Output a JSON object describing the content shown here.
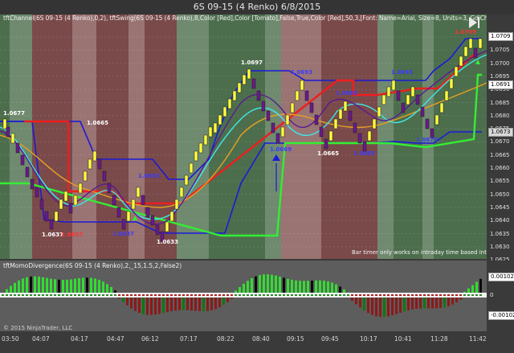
{
  "window": {
    "title": "6S 09-15 (4 Renko)  6/8/2015"
  },
  "chart": {
    "indicator_line": "tftChannel(6S 09-15 (4 Renko),0,2), tftSwing(6S 09-15 (4 Renko),8,Color [Red],Color [Tomato],False,True,Color [Red],50,3,[Font: Name=Arial, Size=8, Units=3, GdiCharSet=1, GdiVerticalFont=",
    "price_ticks": [
      "1.0709",
      "1.0705",
      "1.0700",
      "1.0695",
      "1.0690",
      "1.0685",
      "1.0680",
      "1.0675",
      "1.0670",
      "1.0665",
      "1.0660",
      "1.0655",
      "1.0650",
      "1.0645",
      "1.0640",
      "1.0635",
      "1.0630",
      "1.0625"
    ],
    "current_price_badge": "1.0709",
    "badge_2": "1.0691",
    "badge_3": "1.0673",
    "swing_labels": [
      {
        "text": "1.0677",
        "color": "#ffffff"
      },
      {
        "text": "1.0665",
        "color": "#ffffff"
      },
      {
        "text": "1.0637",
        "color": "#ffffff"
      },
      {
        "text": "1.0637",
        "color": "#ff3030"
      },
      {
        "text": "1.0653",
        "color": "#3b3bff"
      },
      {
        "text": "1.0637",
        "color": "#3b3bff"
      },
      {
        "text": "1.0633",
        "color": "#ffffff"
      },
      {
        "text": "1.0697",
        "color": "#ffffff"
      },
      {
        "text": "1.0693",
        "color": "#3b3bff"
      },
      {
        "text": "1.0669",
        "color": "#3b3bff"
      },
      {
        "text": "1.0665",
        "color": "#ffffff"
      },
      {
        "text": "1.0665",
        "color": "#3b3bff"
      },
      {
        "text": "1.0685",
        "color": "#3b3bff"
      },
      {
        "text": "1.0693",
        "color": "#3b3bff"
      },
      {
        "text": "1.0673",
        "color": "#3b3bff"
      },
      {
        "text": "1.0709",
        "color": "#ff3030"
      }
    ],
    "bar_timer_note": "Bar timer only works on intraday time based intervals"
  },
  "indicator_panel": {
    "title": "tftMomoDivergence(6S 09-15 (4 Renko),2,_15,1.5,2,False2)",
    "ticks": [
      "0.00102",
      "0",
      "-0.00102"
    ]
  },
  "time_axis": [
    "03:50",
    "04:07",
    "04:17",
    "04:47",
    "06:12",
    "07:17",
    "08:22",
    "08:40",
    "09:15",
    "09:45",
    "10:17",
    "10:41",
    "11:28",
    "11:42"
  ],
  "footer": {
    "copyright": "© 2015 NinjaTrader, LLC"
  },
  "colors": {
    "up": "#ffff40",
    "down": "#6a1a8a",
    "channel": "#1a1ad8",
    "green": "#2ee82e",
    "red": "#e81e1e"
  }
}
